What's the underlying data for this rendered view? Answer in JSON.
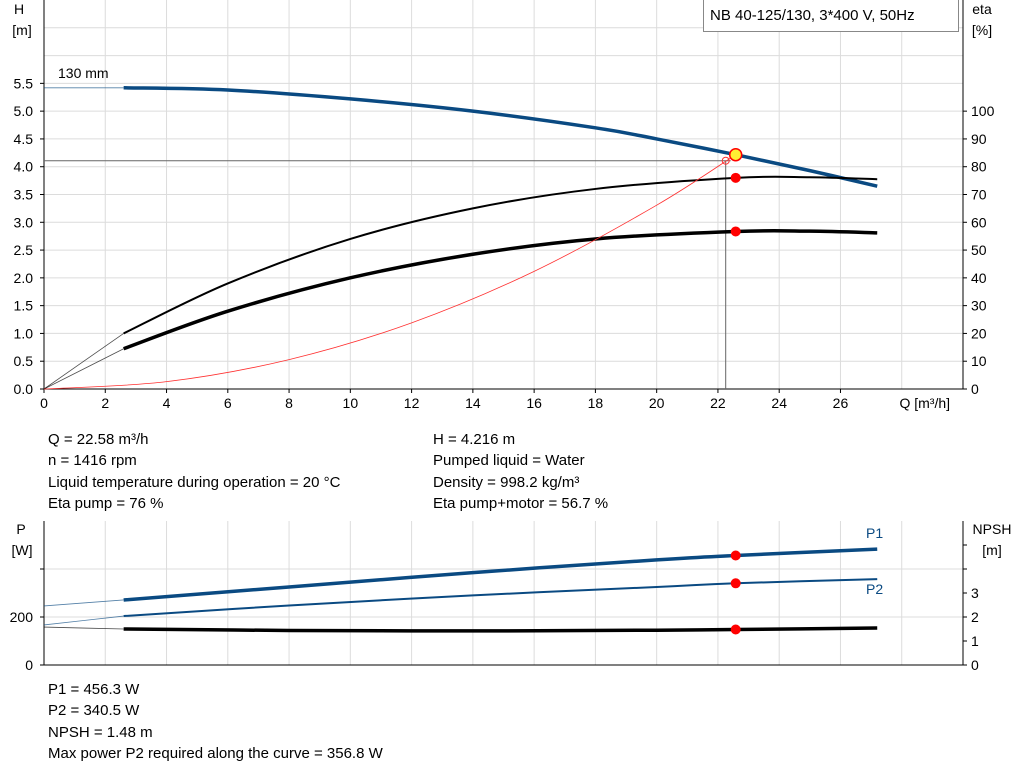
{
  "title_box": "NB 40-125/130, 3*400 V, 50Hz",
  "colors": {
    "head": "#0a4a82",
    "eta": "#000000",
    "system": "#ff3030",
    "power": "#0a4a82",
    "npsh": "#000000",
    "marker": "#ff0000",
    "op_marker": "#ffee33",
    "grid": "#dcdcdc"
  },
  "chart_data": [
    {
      "type": "line",
      "xlabel": "Q [m³/h]",
      "ylabel": "H\n[m]",
      "ylabel_right": "eta\n[%]",
      "xlim": [
        0,
        30
      ],
      "ylim": [
        0,
        7
      ],
      "ylim_right": [
        0,
        140
      ],
      "x_ticks": [
        0,
        2,
        4,
        6,
        8,
        10,
        12,
        14,
        16,
        18,
        20,
        22,
        24,
        26
      ],
      "y_ticks": [
        "0.0",
        "0.5",
        "1.0",
        "1.5",
        "2.0",
        "2.5",
        "3.0",
        "3.5",
        "4.0",
        "4.5",
        "5.0",
        "5.5"
      ],
      "y_ticks_right": [
        0,
        10,
        20,
        30,
        40,
        50,
        60,
        70,
        80,
        90,
        100
      ],
      "grid": true,
      "curve_label": "130 mm",
      "series": [
        {
          "key": "head",
          "axis": "left",
          "x": [
            2.6,
            6,
            10,
            14,
            18,
            20,
            22.58,
            25,
            27.2
          ],
          "y": [
            5.42,
            5.38,
            5.22,
            5.0,
            4.7,
            4.5,
            4.216,
            3.93,
            3.65
          ],
          "extension": {
            "x": [
              0,
              2.6
            ],
            "y": [
              5.42,
              5.42
            ]
          }
        },
        {
          "key": "eta_pump",
          "axis": "right",
          "x": [
            2.6,
            6,
            10,
            14,
            18,
            22.58,
            25,
            27.2
          ],
          "y": [
            20,
            38,
            54,
            65,
            72,
            76,
            76.2,
            75.5
          ],
          "extension": {
            "x": [
              0,
              2.6
            ],
            "y": [
              0,
              20
            ]
          }
        },
        {
          "key": "eta_pump_motor",
          "axis": "right",
          "x": [
            2.6,
            6,
            10,
            14,
            18,
            22.58,
            25,
            27.2
          ],
          "y": [
            14.5,
            28,
            40,
            48.5,
            54,
            56.7,
            56.8,
            56.2
          ],
          "extension": {
            "x": [
              0,
              2.6
            ],
            "y": [
              0,
              14.5
            ]
          }
        },
        {
          "key": "system",
          "axis": "left",
          "x": [
            0,
            4,
            8,
            12,
            16,
            20,
            22.58
          ],
          "y": [
            0,
            0.132,
            0.529,
            1.19,
            2.117,
            3.308,
            4.216
          ]
        }
      ],
      "operating_point": {
        "Q": 22.58,
        "H": 4.216,
        "eta_pump": 76,
        "eta_pump_motor": 56.7
      }
    },
    {
      "type": "line",
      "ylabel": "P\n[W]",
      "ylabel_right": "NPSH\n[m]",
      "xlim": [
        0,
        30
      ],
      "ylim": [
        0,
        600
      ],
      "ylim_right": [
        0,
        6
      ],
      "y_ticks": [
        0,
        200
      ],
      "y_ticks_right": [
        0,
        1,
        2,
        3
      ],
      "grid": true,
      "series": [
        {
          "key": "P1",
          "name": "P1",
          "axis": "left",
          "x": [
            2.6,
            8,
            14,
            20,
            22.58,
            27.2
          ],
          "y": [
            271,
            325,
            385,
            438,
            456.3,
            483
          ],
          "extension": {
            "x": [
              0,
              2.6
            ],
            "y": [
              246,
              271
            ]
          }
        },
        {
          "key": "P2",
          "name": "P2",
          "axis": "left",
          "x": [
            2.6,
            8,
            14,
            20,
            22.58,
            27.2
          ],
          "y": [
            204,
            248,
            290,
            325,
            340.5,
            358
          ],
          "extension": {
            "x": [
              0,
              2.6
            ],
            "y": [
              167,
              204
            ]
          }
        },
        {
          "key": "NPSH",
          "axis": "right",
          "x": [
            2.6,
            8,
            14,
            20,
            22.58,
            27.2
          ],
          "y": [
            1.5,
            1.44,
            1.42,
            1.45,
            1.48,
            1.54
          ],
          "extension": {
            "x": [
              0,
              2.6
            ],
            "y": [
              1.58,
              1.5
            ]
          }
        }
      ],
      "operating_point": {
        "Q": 22.58,
        "P1": 456.3,
        "P2": 340.5,
        "NPSH": 1.48
      }
    }
  ],
  "info_top": {
    "left": [
      "Q = 22.58 m³/h",
      "n = 1416 rpm",
      "Liquid temperature during operation = 20 °C",
      "Eta pump = 76 %"
    ],
    "right": [
      "H = 4.216 m",
      "Pumped liquid = Water",
      "Density = 998.2 kg/m³",
      "Eta pump+motor = 56.7 %"
    ]
  },
  "info_bottom": [
    "P1 = 456.3 W",
    "P2 = 340.5 W",
    "NPSH = 1.48 m",
    "Max power P2 required along the curve = 356.8 W"
  ]
}
